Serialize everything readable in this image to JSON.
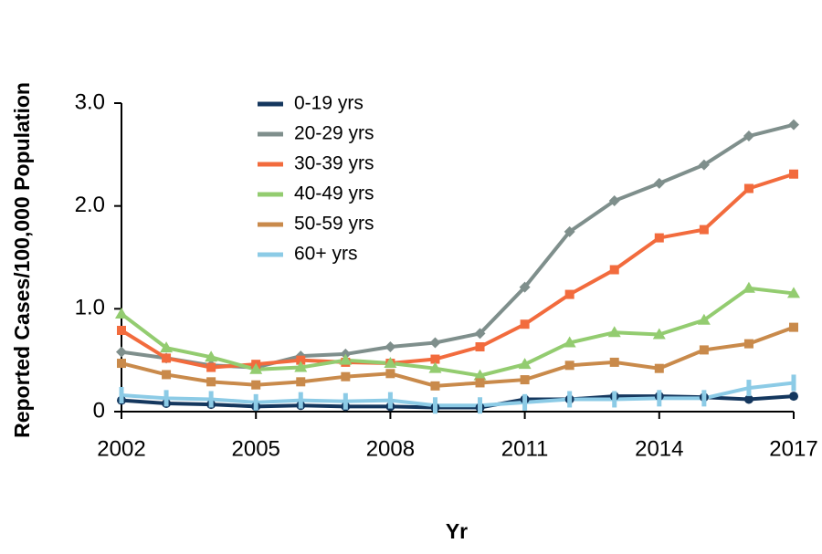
{
  "chart_data": {
    "type": "line",
    "x_label": "Yr",
    "y_label": "Reported Cases/100,000 Population",
    "x": [
      2002,
      2003,
      2004,
      2005,
      2006,
      2007,
      2008,
      2009,
      2010,
      2011,
      2012,
      2013,
      2014,
      2015,
      2016,
      2017
    ],
    "xlim": [
      2002,
      2017
    ],
    "xticks": [
      2002,
      2005,
      2008,
      2011,
      2014,
      2017
    ],
    "ylim": [
      0,
      3
    ],
    "yticks": [
      0,
      {
        "value": 1,
        "label": "1.0"
      },
      {
        "value": 2,
        "label": "2.0"
      },
      {
        "value": 3,
        "label": "3.0"
      }
    ],
    "legend": "top-center",
    "series": [
      {
        "name": "0-19 yrs",
        "color": "#14375e",
        "marker": "circle",
        "values": [
          0.11,
          0.08,
          0.07,
          0.05,
          0.06,
          0.05,
          0.05,
          0.04,
          0.04,
          0.12,
          0.12,
          0.15,
          0.15,
          0.14,
          0.12,
          0.15
        ]
      },
      {
        "name": "20-29 yrs",
        "color": "#7f8f8c",
        "marker": "diamond",
        "values": [
          0.58,
          0.52,
          0.45,
          0.43,
          0.54,
          0.56,
          0.63,
          0.67,
          0.76,
          1.21,
          1.75,
          2.05,
          2.22,
          2.4,
          2.68,
          2.79
        ]
      },
      {
        "name": "30-39 yrs",
        "color": "#f26b3d",
        "marker": "square",
        "values": [
          0.79,
          0.52,
          0.43,
          0.46,
          0.5,
          0.48,
          0.47,
          0.51,
          0.63,
          0.85,
          1.14,
          1.38,
          1.69,
          1.77,
          2.17,
          2.31
        ]
      },
      {
        "name": "40-49 yrs",
        "color": "#93cc70",
        "marker": "triangle",
        "values": [
          0.95,
          0.62,
          0.53,
          0.41,
          0.43,
          0.5,
          0.47,
          0.42,
          0.35,
          0.46,
          0.67,
          0.77,
          0.75,
          0.89,
          1.2,
          1.15
        ]
      },
      {
        "name": "50-59 yrs",
        "color": "#c98a4b",
        "marker": "square",
        "values": [
          0.47,
          0.36,
          0.29,
          0.26,
          0.29,
          0.34,
          0.37,
          0.25,
          0.28,
          0.31,
          0.45,
          0.48,
          0.42,
          0.6,
          0.66,
          0.82
        ]
      },
      {
        "name": "60+ yrs",
        "color": "#8ccbe6",
        "marker": "bar",
        "values": [
          0.16,
          0.13,
          0.12,
          0.09,
          0.11,
          0.1,
          0.11,
          0.06,
          0.06,
          0.09,
          0.12,
          0.12,
          0.13,
          0.13,
          0.23,
          0.28
        ]
      }
    ]
  }
}
